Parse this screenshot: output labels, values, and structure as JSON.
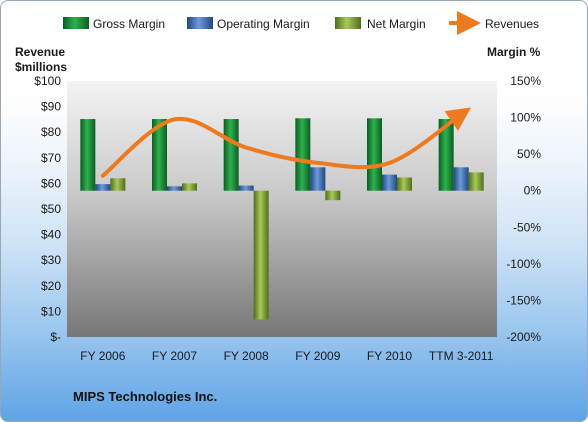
{
  "company": "MIPS Technologies Inc.",
  "colors": {
    "gross": "#1f8f3a",
    "operating": "#3f6fb5",
    "net": "#7fa33a",
    "revenues": "#ee7a1f"
  },
  "chart_data": {
    "type": "bar",
    "categories": [
      "FY 2006",
      "FY 2007",
      "FY 2008",
      "FY 2009",
      "FY 2010",
      "TTM 3-2011"
    ],
    "series": [
      {
        "name": "Gross Margin",
        "axis": "right",
        "values": [
          98,
          98,
          98,
          99,
          99,
          98
        ]
      },
      {
        "name": "Operating Margin",
        "axis": "right",
        "values": [
          9,
          6,
          7,
          32,
          22,
          32
        ]
      },
      {
        "name": "Net Margin",
        "axis": "right",
        "values": [
          17,
          10,
          -176,
          -13,
          18,
          25
        ]
      },
      {
        "name": "Revenues",
        "type": "line",
        "axis": "left",
        "values": [
          63,
          85,
          74,
          68,
          68,
          87
        ]
      }
    ],
    "left_axis": {
      "label_line1": "Revenue",
      "label_line2": "$millions",
      "ylim": [
        0,
        100
      ],
      "ticks": [
        "$-",
        "$10",
        "$20",
        "$30",
        "$40",
        "$50",
        "$60",
        "$70",
        "$80",
        "$90",
        "$100"
      ]
    },
    "right_axis": {
      "label": "Margin %",
      "ylim": [
        -200,
        150
      ],
      "ticks": [
        "-200%",
        "-150%",
        "-100%",
        "-50%",
        "0%",
        "50%",
        "100%",
        "150%"
      ]
    },
    "legend": [
      "Gross Margin",
      "Operating Margin",
      "Net Margin",
      "Revenues"
    ],
    "legend_position": "top",
    "grid": false
  }
}
